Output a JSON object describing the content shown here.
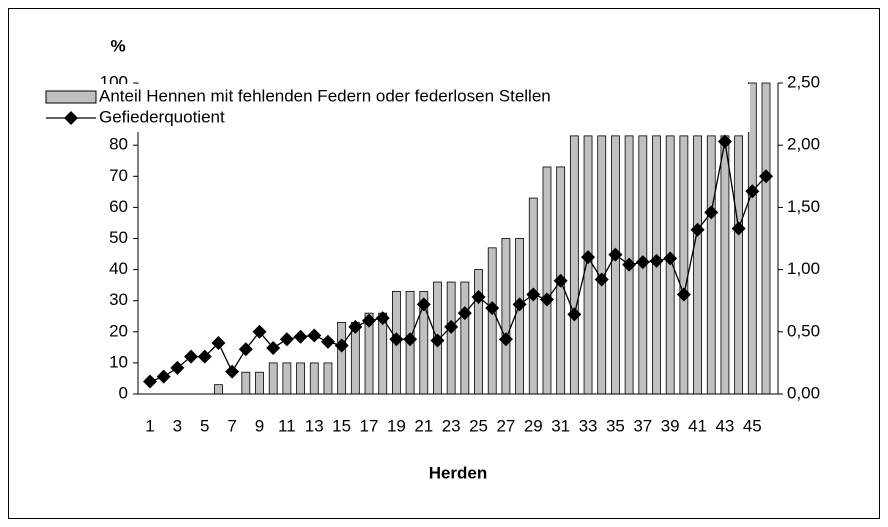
{
  "chart_data": {
    "type": "bar_line",
    "title": "%",
    "x_label": "Herden",
    "categories": [
      "1",
      null,
      "3",
      null,
      "5",
      null,
      "7",
      null,
      "9",
      null,
      "11",
      null,
      "13",
      null,
      "15",
      null,
      "17",
      null,
      "19",
      null,
      "21",
      null,
      "23",
      null,
      "25",
      null,
      "27",
      null,
      "29",
      null,
      "31",
      null,
      "33",
      null,
      "35",
      null,
      "37",
      null,
      "39",
      null,
      "41",
      null,
      "43",
      null,
      "45",
      null
    ],
    "series": [
      {
        "name": "Anteil Hennen mit fehlenden Federn oder federlosen Stellen",
        "type": "bar",
        "color": "#c0c0c0",
        "values": [
          0,
          0,
          0,
          0,
          0,
          3,
          0,
          7,
          7,
          10,
          10,
          10,
          10,
          10,
          23,
          23,
          26,
          26,
          33,
          33,
          33,
          36,
          36,
          36,
          40,
          47,
          50,
          50,
          63,
          73,
          73,
          83,
          83,
          83,
          83,
          83,
          83,
          83,
          83,
          83,
          83,
          83,
          83,
          83,
          100,
          100
        ]
      },
      {
        "name": "Gefiederquotient",
        "type": "line",
        "axis": "y2",
        "color": "#000000",
        "values": [
          0.1,
          0.14,
          0.21,
          0.3,
          0.3,
          0.41,
          0.18,
          0.36,
          0.5,
          0.37,
          0.44,
          0.46,
          0.47,
          0.42,
          0.39,
          0.54,
          0.59,
          0.61,
          0.44,
          0.44,
          0.72,
          0.43,
          0.54,
          0.65,
          0.78,
          0.69,
          0.44,
          0.72,
          0.8,
          0.76,
          0.91,
          0.64,
          1.1,
          0.92,
          1.12,
          1.04,
          1.06,
          1.07,
          1.09,
          0.8,
          1.32,
          1.46,
          2.03,
          1.33,
          1.63,
          1.75
        ]
      }
    ],
    "ylim": [
      0,
      100
    ],
    "yticks": [
      0,
      10,
      20,
      30,
      40,
      50,
      60,
      70,
      80,
      90,
      100
    ],
    "y2lim": [
      0,
      2.5
    ],
    "y2ticks": [
      {
        "value": 0,
        "label": "0,00"
      },
      {
        "value": 0.5,
        "label": "0,50"
      },
      {
        "value": 1,
        "label": "1,00"
      },
      {
        "value": 1.5,
        "label": "1,50"
      },
      {
        "value": 2,
        "label": "2,00"
      },
      {
        "value": 2.5,
        "label": "2,50"
      }
    ]
  }
}
